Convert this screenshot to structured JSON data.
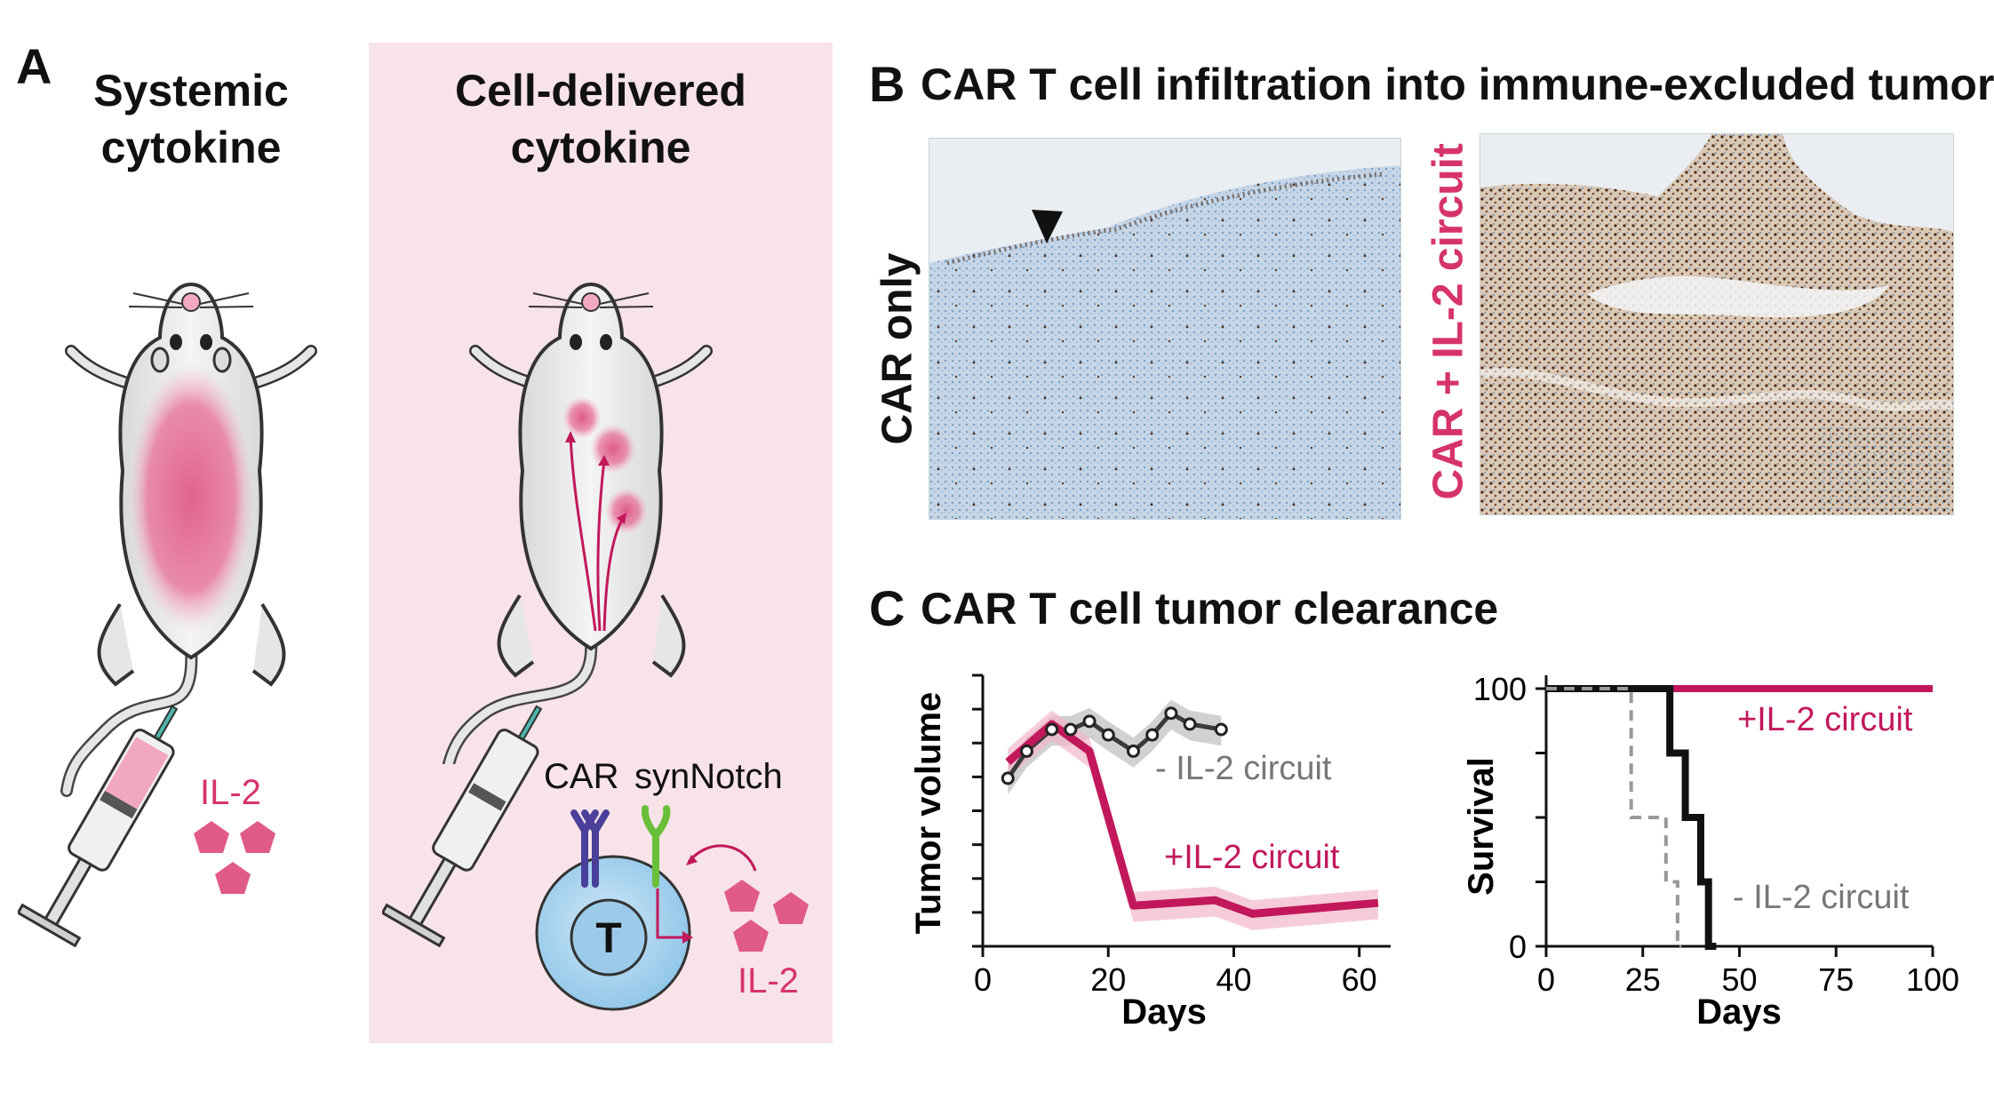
{
  "panelA": {
    "letter": "A",
    "left_title_line1": "Systemic",
    "left_title_line2": "cytokine",
    "right_title_line1": "Cell-delivered",
    "right_title_line2": "cytokine",
    "il2_left": "IL-2",
    "il2_right": "IL-2",
    "car_label": "CAR",
    "synnotch_label": "synNotch",
    "t_cell_label": "T",
    "accent_pink": "#d6336c",
    "panel_bg": "#f8e3e8"
  },
  "panelB": {
    "letter": "B",
    "title": "CAR T cell infiltration into immune-excluded tumor",
    "left_label": "CAR only",
    "right_label": "CAR + IL-2 circuit"
  },
  "panelC": {
    "letter": "C",
    "title": "CAR T cell tumor clearance"
  },
  "chart_data": [
    {
      "type": "line",
      "xlabel": "Days",
      "ylabel": "Tumor volume",
      "xlim": [
        0,
        65
      ],
      "x_ticks": [
        "0",
        "20",
        "40",
        "60"
      ],
      "series": [
        {
          "name": "- IL-2 circuit",
          "color": "#3a3a3a",
          "x": [
            4,
            7,
            11,
            14,
            17,
            20,
            24,
            27,
            30,
            33,
            38
          ],
          "y": [
            0.62,
            0.72,
            0.8,
            0.8,
            0.83,
            0.78,
            0.72,
            0.78,
            0.86,
            0.82,
            0.8
          ]
        },
        {
          "name": "+IL-2 circuit",
          "color": "#c2185b",
          "x": [
            4,
            11,
            17,
            24,
            37,
            43,
            63
          ],
          "y": [
            0.68,
            0.82,
            0.72,
            0.15,
            0.17,
            0.12,
            0.16
          ]
        }
      ]
    },
    {
      "type": "line",
      "xlabel": "Days",
      "ylabel": "Survival",
      "xlim": [
        0,
        100
      ],
      "ylim": [
        0,
        100
      ],
      "x_ticks": [
        "0",
        "25",
        "50",
        "75",
        "100"
      ],
      "y_ticks": [
        "0",
        "100"
      ],
      "series": [
        {
          "name": "+IL-2 circuit",
          "color": "#c2185b",
          "x": [
            0,
            100
          ],
          "y": [
            100,
            100
          ]
        },
        {
          "name": "- IL-2 circuit",
          "color": "#111111",
          "x": [
            0,
            32,
            32,
            36,
            36,
            40,
            40,
            42,
            42,
            44,
            44
          ],
          "y": [
            100,
            100,
            75,
            75,
            50,
            50,
            25,
            25,
            0,
            0,
            0
          ]
        },
        {
          "color": "#999999",
          "x": [
            0,
            22,
            22,
            31,
            31,
            34,
            34,
            35
          ],
          "y": [
            100,
            100,
            50,
            50,
            25,
            25,
            0,
            0
          ]
        }
      ]
    }
  ]
}
